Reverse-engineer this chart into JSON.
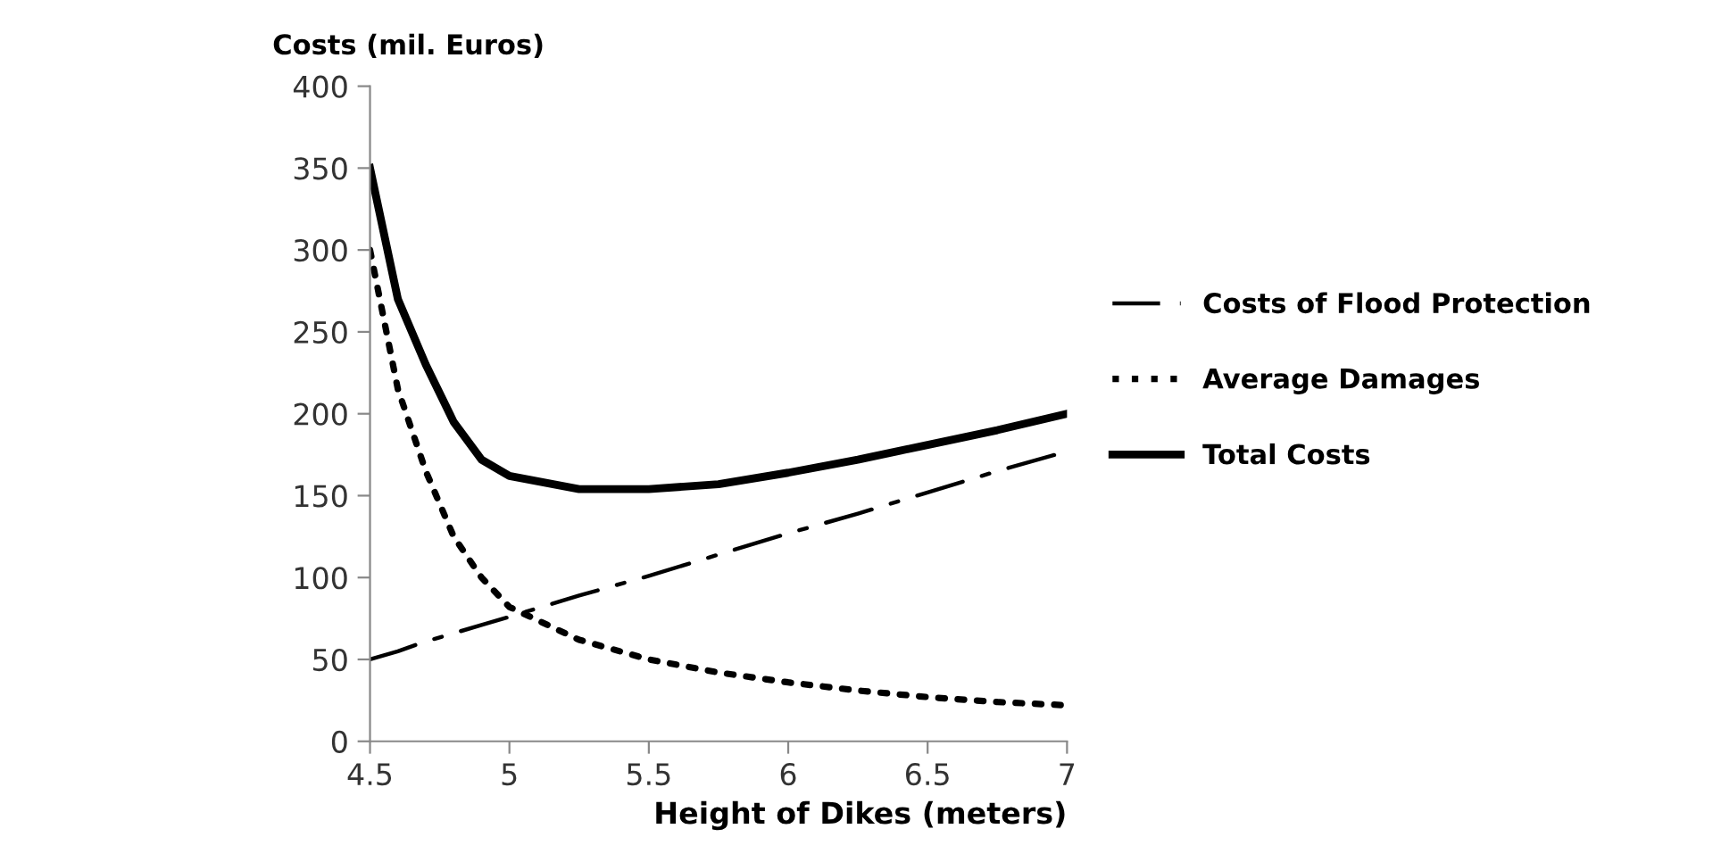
{
  "chart_data": {
    "type": "line",
    "ylabel": "Costs (mil. Euros)",
    "xlabel": "Height of Dikes (meters)",
    "x": [
      4.5,
      4.6,
      4.7,
      4.8,
      4.9,
      5.0,
      5.25,
      5.5,
      5.75,
      6.0,
      6.25,
      6.5,
      6.75,
      7.0
    ],
    "series": [
      {
        "name": "Costs of Flood Protection",
        "color": "#000000",
        "line_style": "dashdot",
        "values": [
          50,
          55,
          61,
          66,
          71,
          76,
          89,
          101,
          114,
          127,
          139,
          152,
          165,
          177
        ]
      },
      {
        "name": "Average Damages",
        "color": "#000000",
        "line_style": "dotted",
        "values": [
          300,
          215,
          165,
          125,
          100,
          82,
          62,
          50,
          42,
          36,
          31,
          27,
          24,
          22
        ]
      },
      {
        "name": "Total Costs",
        "color": "#000000",
        "line_style": "solid",
        "values": [
          350,
          270,
          230,
          195,
          172,
          162,
          154,
          154,
          157,
          164,
          172,
          181,
          190,
          200
        ]
      }
    ],
    "xlim": [
      4.5,
      7
    ],
    "xticks": [
      4.5,
      5,
      5.5,
      6,
      6.5,
      7
    ],
    "ylim": [
      0,
      400
    ],
    "yticks": [
      0,
      50,
      100,
      150,
      200,
      250,
      300,
      350,
      400
    ],
    "grid": false,
    "legend": "right",
    "marker": "none"
  }
}
